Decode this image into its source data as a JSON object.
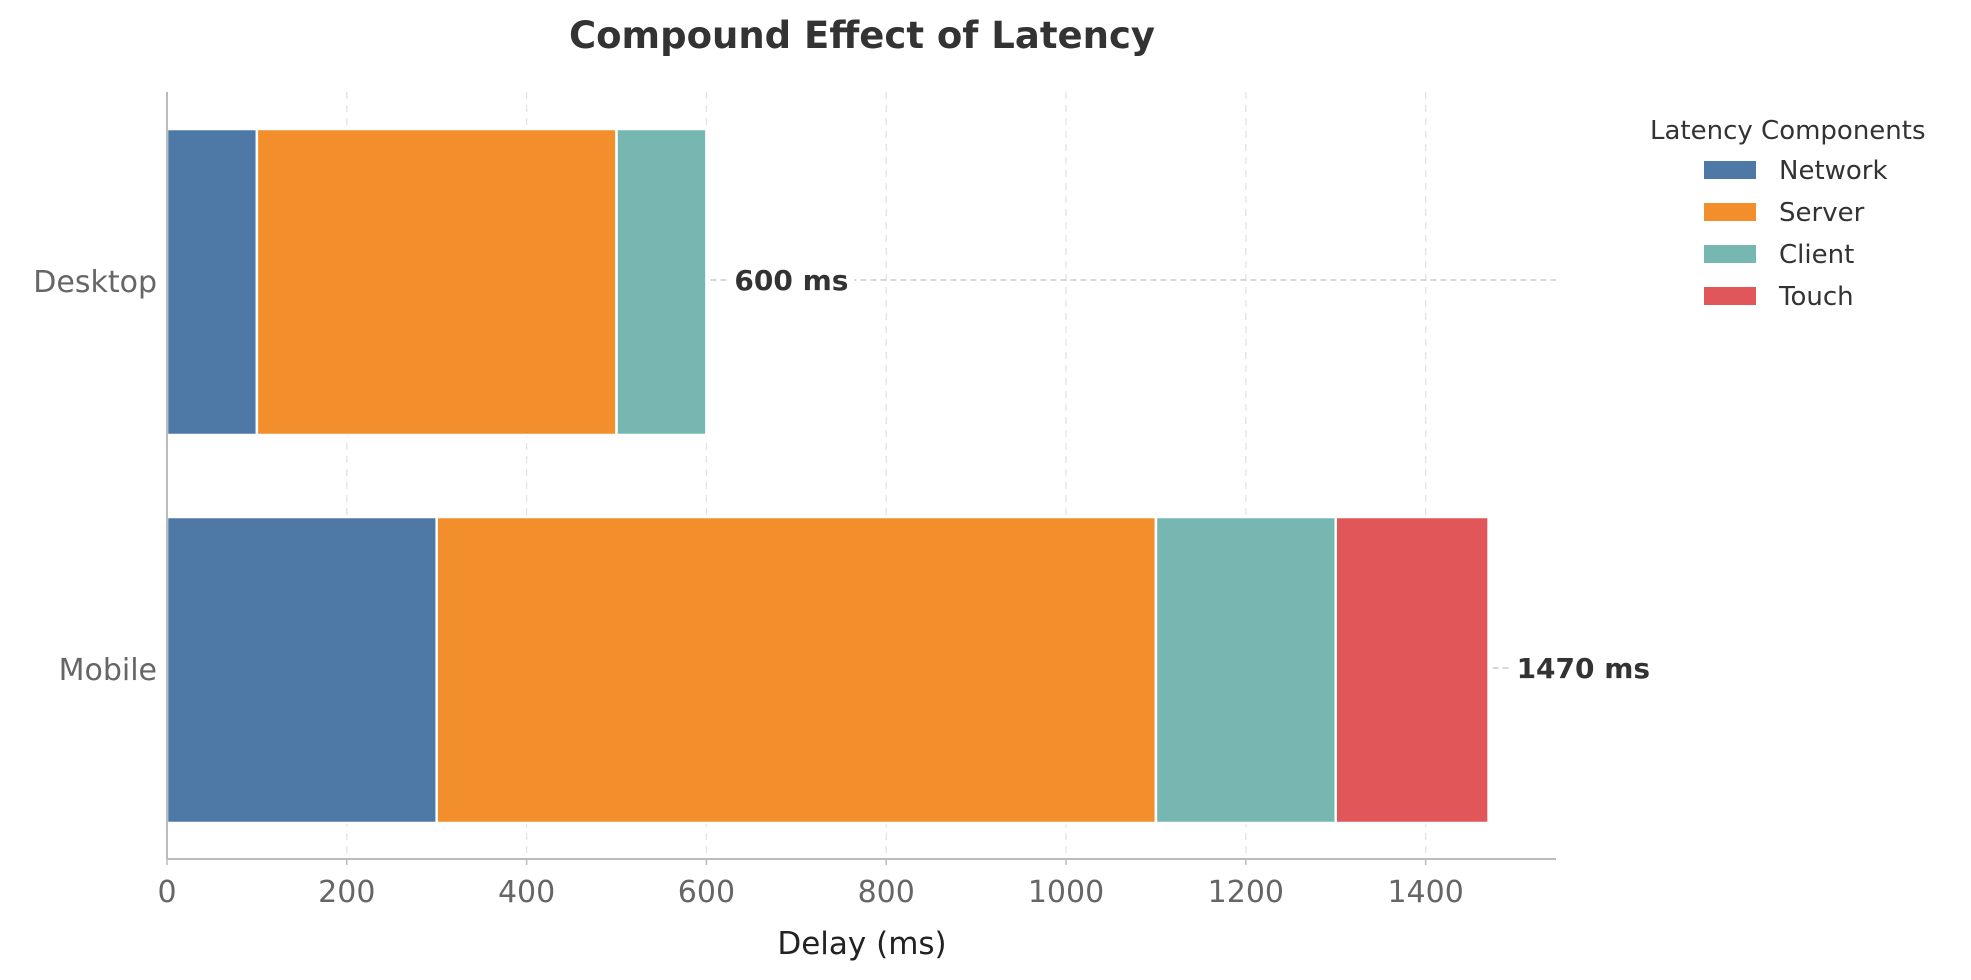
{
  "chart_data": {
    "type": "bar",
    "orientation": "horizontal",
    "stacked": true,
    "title": "Compound Effect of Latency",
    "xlabel": "Delay (ms)",
    "ylabel": "",
    "categories": [
      "Desktop",
      "Mobile"
    ],
    "xlim": [
      0,
      1545
    ],
    "xticks": [
      0,
      200,
      400,
      600,
      800,
      1000,
      1200,
      1400
    ],
    "xtick_labels": [
      "0",
      "200",
      "400",
      "600",
      "800",
      "1000",
      "1200",
      "1400"
    ],
    "grid": "vertical dashed",
    "series": [
      {
        "name": "Network",
        "color": "#4e79a7",
        "values": [
          100,
          300
        ]
      },
      {
        "name": "Server",
        "color": "#f28e2b",
        "values": [
          400,
          800
        ]
      },
      {
        "name": "Client",
        "color": "#76b7b2",
        "values": [
          100,
          200
        ]
      },
      {
        "name": "Touch",
        "color": "#e15759",
        "values": [
          0,
          170
        ]
      }
    ],
    "total_labels": [
      "600 ms",
      "1470 ms"
    ],
    "totals": [
      600,
      1470
    ],
    "legend": {
      "title": "Latency Components",
      "placement": "upper right, outside plot"
    }
  }
}
